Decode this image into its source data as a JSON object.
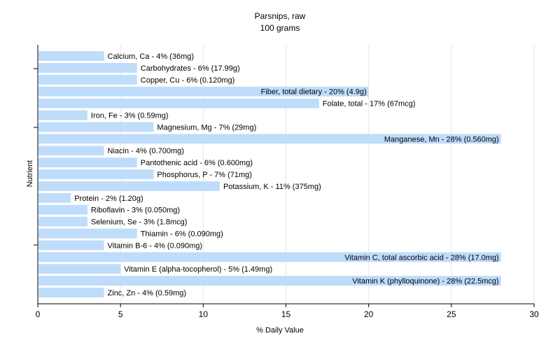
{
  "chart_data": {
    "type": "bar",
    "orientation": "horizontal",
    "title": "Parsnips, raw",
    "subtitle": "100 grams",
    "xlabel": "% Daily Value",
    "ylabel": "Nutrient",
    "xlim": [
      0,
      30
    ],
    "xticks": [
      0,
      5,
      10,
      15,
      20,
      25,
      30
    ],
    "grid": true,
    "bar_color": "#bfdcfb",
    "categories": [
      "Calcium, Ca - 4% (36mg)",
      "Carbohydrates - 6% (17.99g)",
      "Copper, Cu - 6% (0.120mg)",
      "Fiber, total dietary - 20% (4.9g)",
      "Folate, total - 17% (67mcg)",
      "Iron, Fe - 3% (0.59mg)",
      "Magnesium, Mg - 7% (29mg)",
      "Manganese, Mn - 28% (0.560mg)",
      "Niacin - 4% (0.700mg)",
      "Pantothenic acid - 6% (0.600mg)",
      "Phosphorus, P - 7% (71mg)",
      "Potassium, K - 11% (375mg)",
      "Protein - 2% (1.20g)",
      "Riboflavin - 3% (0.050mg)",
      "Selenium, Se - 3% (1.8mcg)",
      "Thiamin - 6% (0.090mg)",
      "Vitamin B-6 - 4% (0.090mg)",
      "Vitamin C, total ascorbic acid - 28% (17.0mg)",
      "Vitamin E (alpha-tocopherol) - 5% (1.49mg)",
      "Vitamin K (phylloquinone) - 28% (22.5mcg)",
      "Zinc, Zn - 4% (0.59mg)"
    ],
    "values": [
      4,
      6,
      6,
      20,
      17,
      3,
      7,
      28,
      4,
      6,
      7,
      11,
      2,
      3,
      3,
      6,
      4,
      28,
      5,
      28,
      4
    ]
  }
}
